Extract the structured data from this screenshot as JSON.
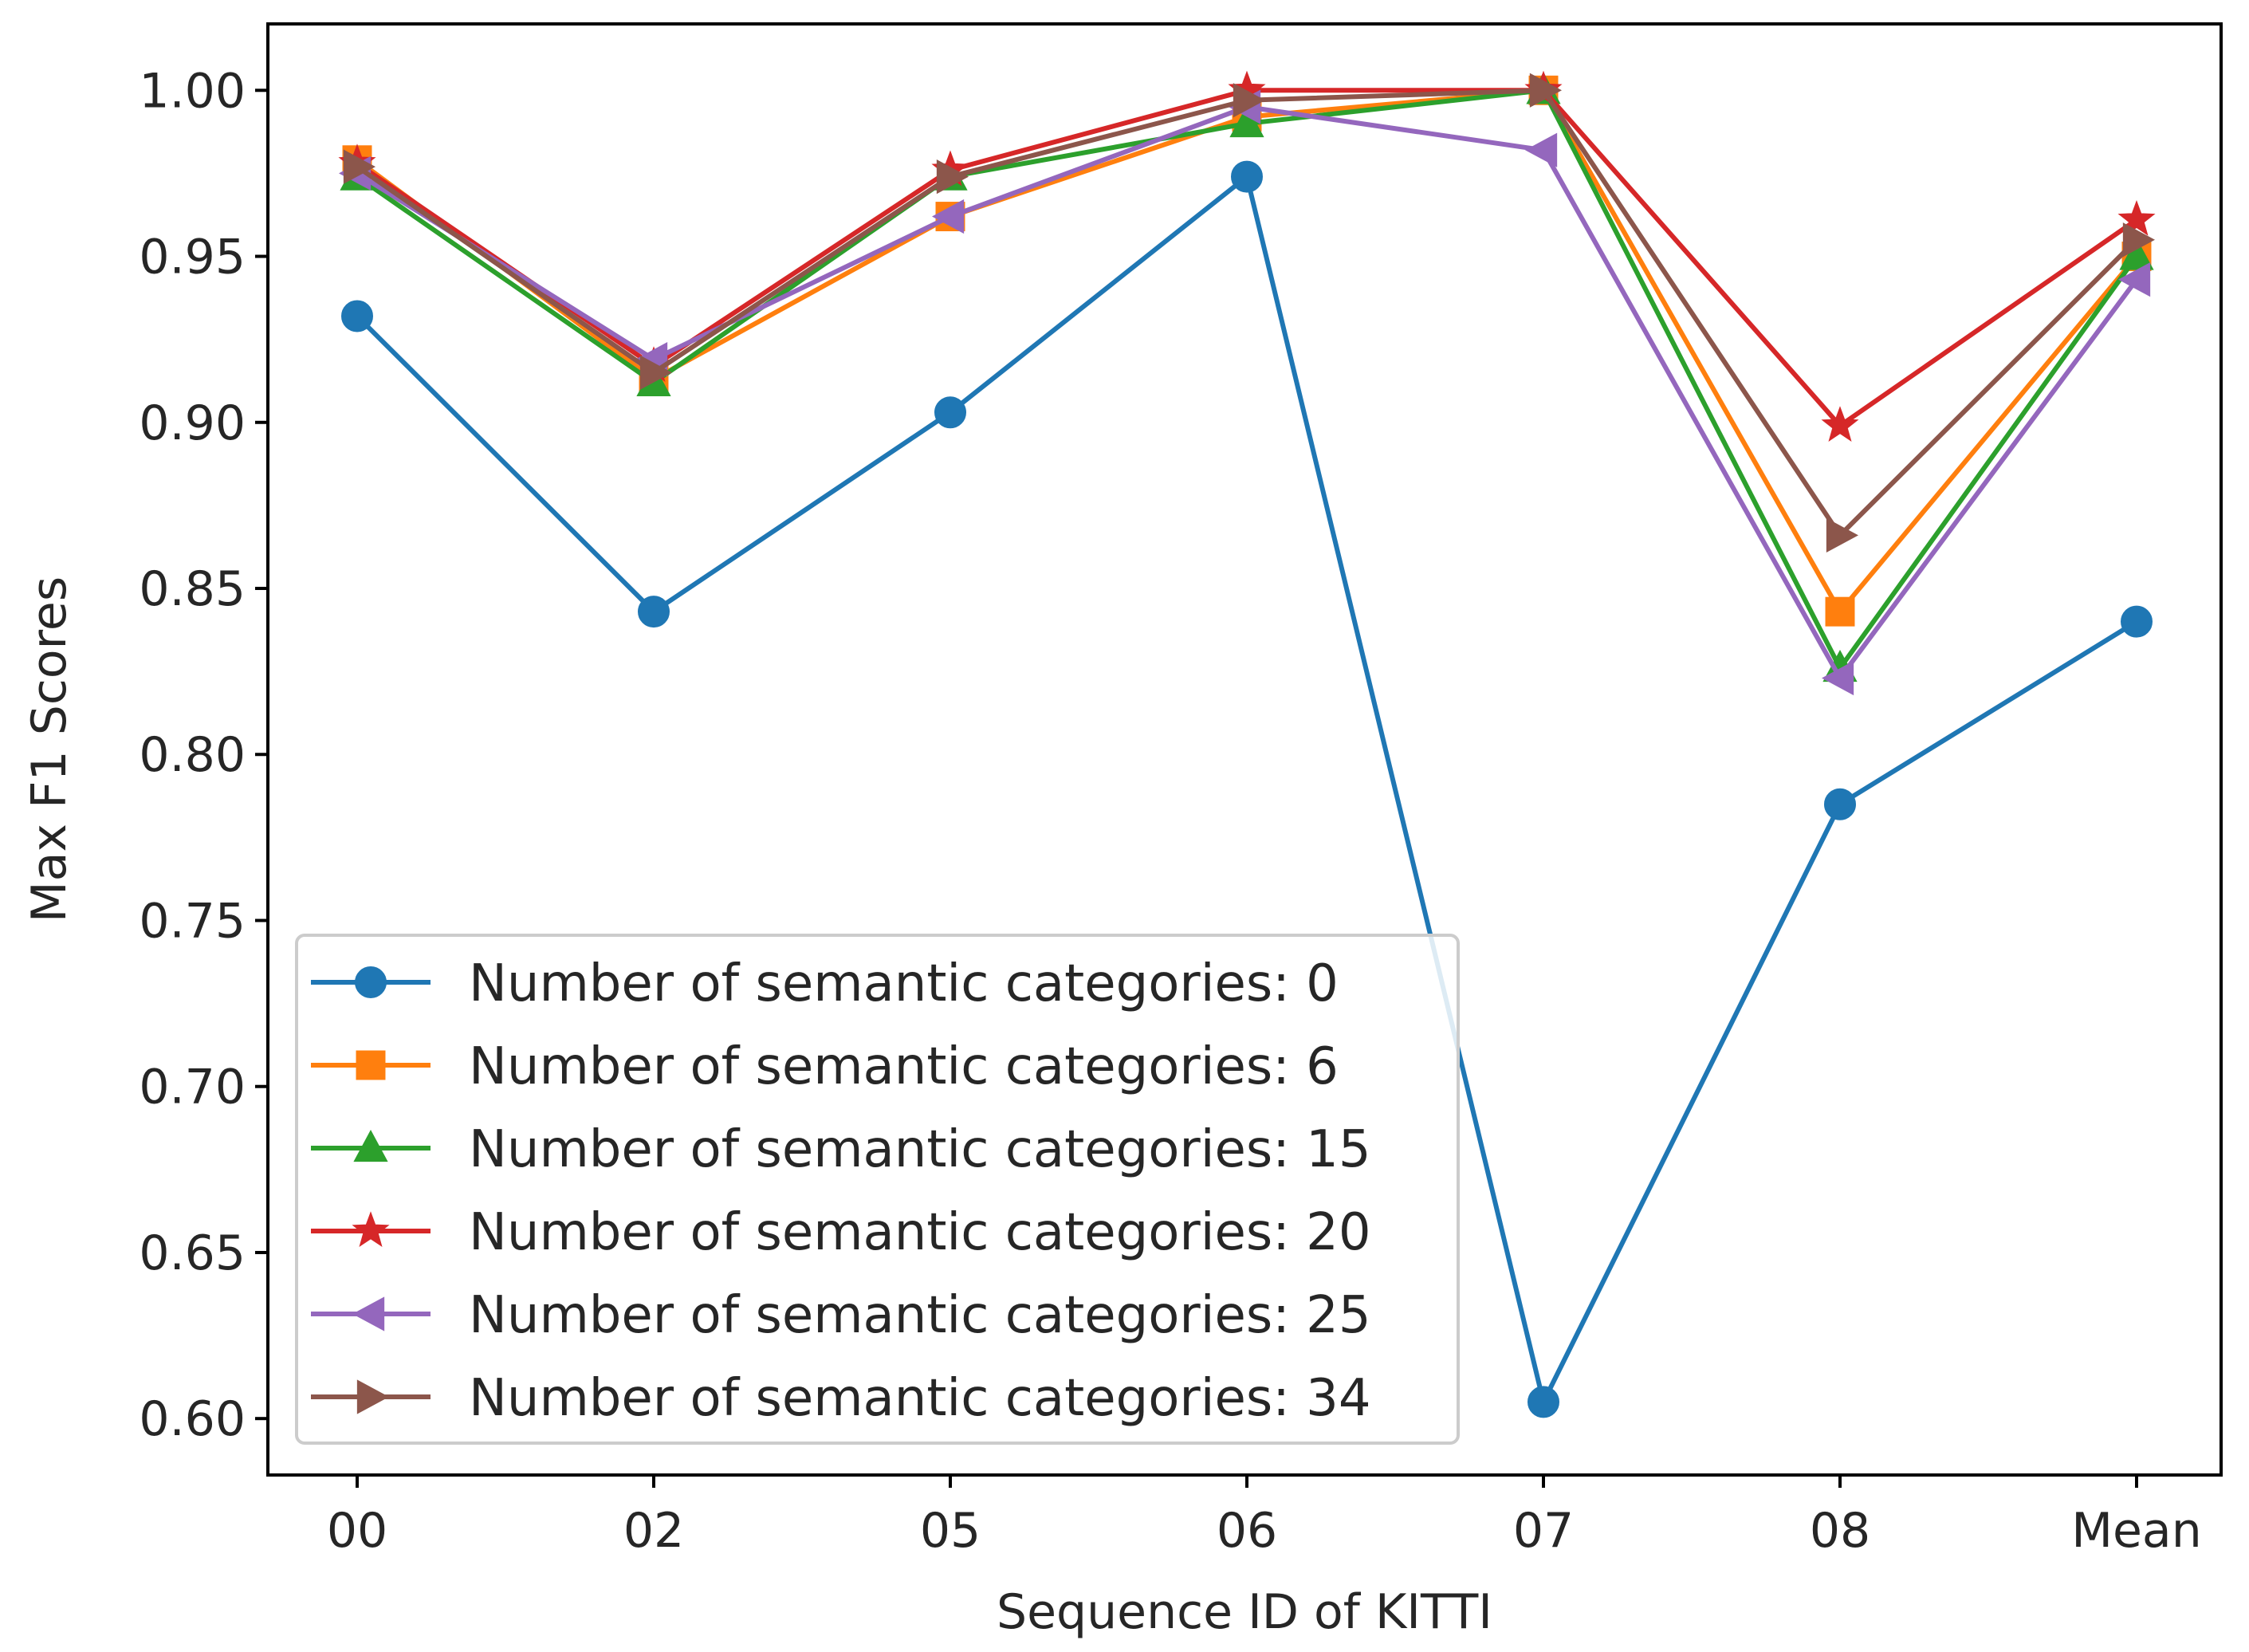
{
  "chart_data": {
    "type": "line",
    "title": "",
    "xlabel": "Sequence ID of KITTI",
    "ylabel": "Max F1 Scores",
    "categories": [
      "00",
      "02",
      "05",
      "06",
      "07",
      "08",
      "Mean"
    ],
    "ylim": [
      0.583,
      1.02
    ],
    "yticks": [
      "0.60",
      "0.65",
      "0.70",
      "0.75",
      "0.80",
      "0.85",
      "0.90",
      "0.95",
      "1.00"
    ],
    "ytick_values": [
      0.6,
      0.65,
      0.7,
      0.75,
      0.8,
      0.85,
      0.9,
      0.95,
      1.0
    ],
    "grid": false,
    "legend_position": "lower-left",
    "series": [
      {
        "name": "Number of semantic categories: 0",
        "color": "#1f77b4",
        "marker": "circle",
        "values": [
          0.932,
          0.843,
          0.903,
          0.974,
          0.605,
          0.785,
          0.84
        ]
      },
      {
        "name": "Number of semantic categories: 6",
        "color": "#ff7f0e",
        "marker": "square",
        "values": [
          0.979,
          0.913,
          0.962,
          0.992,
          1.0,
          0.843,
          0.95
        ]
      },
      {
        "name": "Number of semantic categories: 15",
        "color": "#2ca02c",
        "marker": "triangle-up",
        "values": [
          0.974,
          0.912,
          0.974,
          0.99,
          1.0,
          0.826,
          0.95
        ]
      },
      {
        "name": "Number of semantic categories: 20",
        "color": "#d62728",
        "marker": "star",
        "values": [
          0.978,
          0.917,
          0.976,
          1.0,
          1.0,
          0.899,
          0.961
        ]
      },
      {
        "name": "Number of semantic categories: 25",
        "color": "#9467bd",
        "marker": "triangle-left",
        "values": [
          0.975,
          0.919,
          0.962,
          0.995,
          0.982,
          0.823,
          0.943
        ]
      },
      {
        "name": "Number of semantic categories: 34",
        "color": "#8c564b",
        "marker": "triangle-right",
        "values": [
          0.977,
          0.915,
          0.974,
          0.997,
          1.0,
          0.866,
          0.955
        ]
      }
    ]
  }
}
